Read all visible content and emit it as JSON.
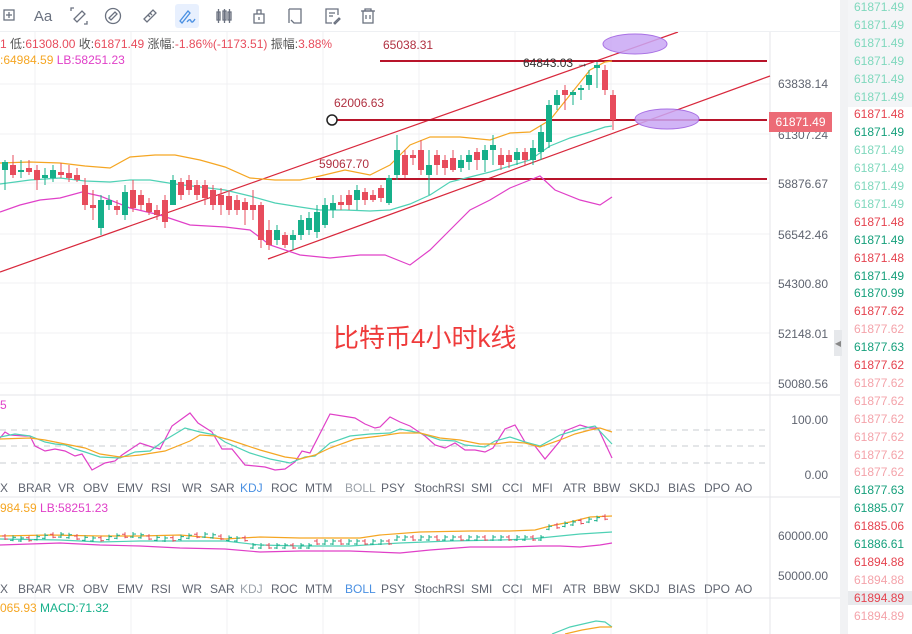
{
  "toolbar": {
    "items": [
      {
        "name": "crosshair-add-icon",
        "glyph": "⊞"
      },
      {
        "name": "text-tool",
        "label": "Aa"
      },
      {
        "name": "ruler-measure-icon"
      },
      {
        "name": "ruler-circle-icon"
      },
      {
        "name": "ruler-icon"
      },
      {
        "name": "pen-draw-icon",
        "active": true
      },
      {
        "name": "candles-icon"
      },
      {
        "name": "lock-icon"
      },
      {
        "name": "bookmark-icon"
      },
      {
        "name": "note-edit-icon"
      },
      {
        "name": "trash-icon"
      }
    ]
  },
  "ohlc": {
    "open_prefix": "1",
    "low_label": "低:",
    "low": "61308.00",
    "close_label": "收:",
    "close": "61871.49",
    "change_label": "涨幅:",
    "change": "-1.86%(-1173.51)",
    "amplitude_label": "振幅:",
    "amplitude": "3.88%"
  },
  "boll": {
    "ub": ":64984.59",
    "lb": "LB:58251.23"
  },
  "chart_title": "比特币4小时k线",
  "levels": {
    "l1": "65038.31",
    "l2": "64843.03 →",
    "l3": "62006.63",
    "l4": "59067.70"
  },
  "price_axis": [
    "63838.14",
    "61307.24",
    "58876.67",
    "56542.46",
    "54300.80",
    "52148.01",
    "50080.56"
  ],
  "current_price": "61871.49",
  "kdj": {
    "header": "5",
    "axis": [
      "100.00",
      "0.00"
    ]
  },
  "boll_panel": {
    "ub": "984.59",
    "lb": "LB:58251.23",
    "axis": [
      "60000.00",
      "50000.00"
    ]
  },
  "macd_panel": {
    "dea": "065.93",
    "macd": "MACD:71.32"
  },
  "indicator_tabs": [
    "X",
    "BRAR",
    "VR",
    "OBV",
    "EMV",
    "RSI",
    "WR",
    "SAR",
    "KDJ",
    "ROC",
    "MTM",
    "BOLL",
    "PSY",
    "StochRSI",
    "SMI",
    "CCI",
    "MFI",
    "ATR",
    "BBW",
    "SKDJ",
    "BIAS",
    "DPO",
    "AO"
  ],
  "ticker": [
    {
      "v": "61871.49",
      "c": "#7fd8bd"
    },
    {
      "v": "61871.49",
      "c": "#7fd8bd"
    },
    {
      "v": "61871.49",
      "c": "#7fd8bd"
    },
    {
      "v": "61871.49",
      "c": "#7fd8bd"
    },
    {
      "v": "61871.49",
      "c": "#7fd8bd"
    },
    {
      "v": "61871.49",
      "c": "#7fd8bd"
    },
    {
      "v": "61871.48",
      "c": "#e5434f"
    },
    {
      "v": "61871.49",
      "c": "#16a07c"
    },
    {
      "v": "61871.49",
      "c": "#7fd8bd"
    },
    {
      "v": "61871.49",
      "c": "#7fd8bd"
    },
    {
      "v": "61871.49",
      "c": "#7fd8bd"
    },
    {
      "v": "61871.49",
      "c": "#7fd8bd"
    },
    {
      "v": "61871.48",
      "c": "#e5434f"
    },
    {
      "v": "61871.49",
      "c": "#16a07c"
    },
    {
      "v": "61871.48",
      "c": "#e5434f"
    },
    {
      "v": "61871.49",
      "c": "#16a07c"
    },
    {
      "v": "61870.99",
      "c": "#16a07c"
    },
    {
      "v": "61877.62",
      "c": "#e5434f"
    },
    {
      "v": "61877.62",
      "c": "#f4a3aa"
    },
    {
      "v": "61877.63",
      "c": "#16a07c"
    },
    {
      "v": "61877.62",
      "c": "#e5434f"
    },
    {
      "v": "61877.62",
      "c": "#f4a3aa"
    },
    {
      "v": "61877.62",
      "c": "#f4a3aa"
    },
    {
      "v": "61877.62",
      "c": "#f4a3aa"
    },
    {
      "v": "61877.62",
      "c": "#f4a3aa"
    },
    {
      "v": "61877.62",
      "c": "#f4a3aa"
    },
    {
      "v": "61877.62",
      "c": "#f4a3aa"
    },
    {
      "v": "61877.63",
      "c": "#16a07c"
    },
    {
      "v": "61885.07",
      "c": "#16a07c"
    },
    {
      "v": "61885.06",
      "c": "#e5434f"
    },
    {
      "v": "61886.61",
      "c": "#16a07c"
    },
    {
      "v": "61894.88",
      "c": "#e5434f"
    },
    {
      "v": "61894.88",
      "c": "#f4a3aa"
    },
    {
      "v": "61894.89",
      "c": "#e5434f"
    },
    {
      "v": "61894.89",
      "c": "#f4a3aa"
    }
  ],
  "colors": {
    "up": "#16b08a",
    "down": "#e74c5c",
    "ub": "#f5a623",
    "mb": "#4fd1b5",
    "lb": "#e040c8",
    "level": "#b8142a"
  }
}
